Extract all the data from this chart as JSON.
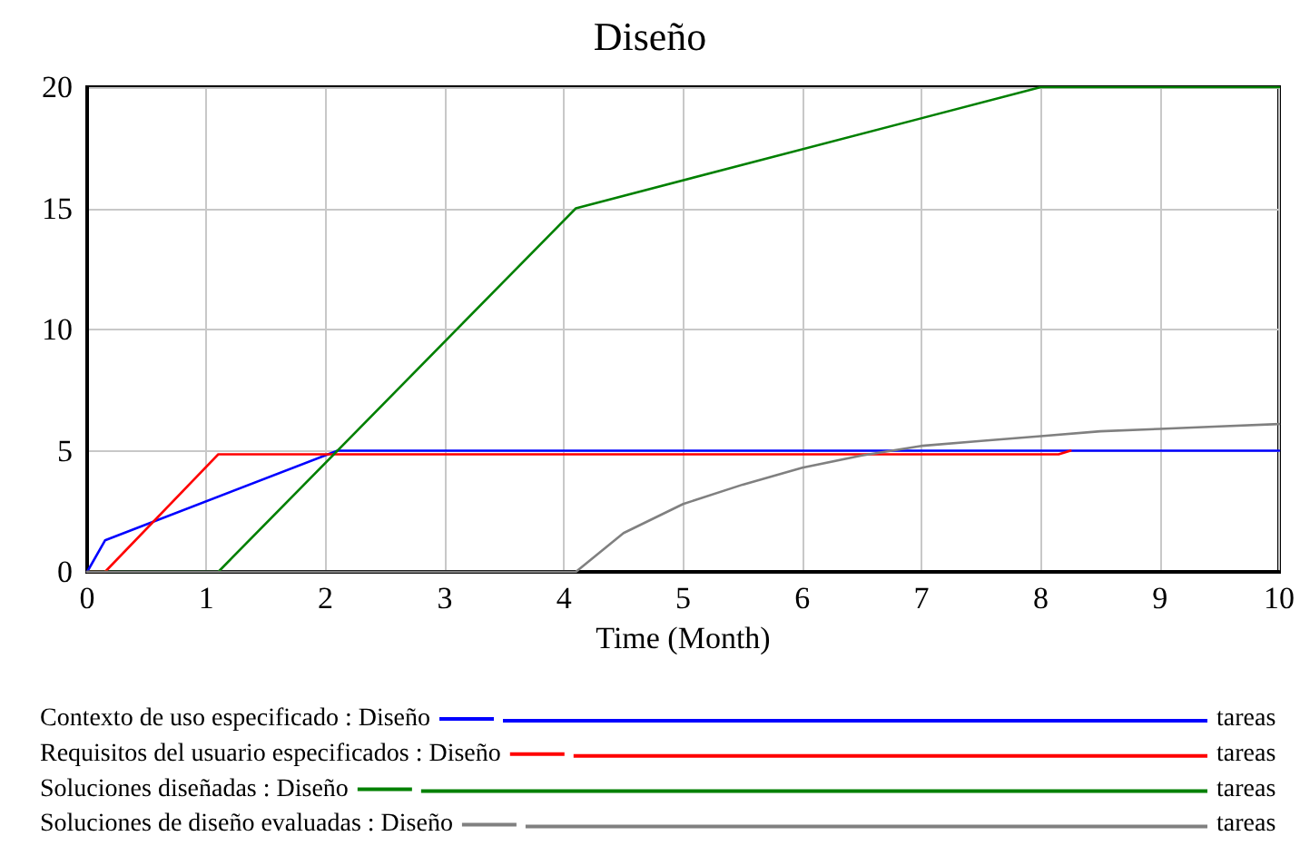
{
  "chart_data": {
    "type": "line",
    "title": "Diseño",
    "xlabel": "Time (Month)",
    "xlim": [
      0,
      10
    ],
    "xticks": [
      0,
      1,
      2,
      3,
      4,
      5,
      6,
      7,
      8,
      9,
      10
    ],
    "ylim": [
      0,
      20
    ],
    "yticks": [
      0,
      5,
      10,
      15,
      20
    ],
    "grid": true,
    "legend": "bottom",
    "marker": "none",
    "line_style": "solid",
    "series": [
      {
        "name": "Contexto de uso especificado : Diseño",
        "color": "#0000ff",
        "x": [
          0,
          0.15,
          2.1,
          10
        ],
        "values": [
          0,
          1.3,
          5,
          5
        ]
      },
      {
        "name": "Requisitos del usuario especificados : Diseño",
        "color": "#ff0000",
        "x": [
          0,
          0.15,
          1.1,
          8.15,
          8.25
        ],
        "values": [
          0,
          0,
          4.85,
          4.85,
          5
        ]
      },
      {
        "name": "Soluciones diseñadas : Diseño",
        "color": "#008000",
        "x": [
          0,
          1.1,
          4.1,
          8,
          10
        ],
        "values": [
          0,
          0,
          15,
          20,
          20
        ]
      },
      {
        "name": "Soluciones de diseño evaluadas : Diseño",
        "color": "#808080",
        "x": [
          0,
          4.1,
          4.5,
          5,
          5.5,
          6,
          6.5,
          7,
          7.5,
          8,
          8.5,
          9,
          9.5,
          10
        ],
        "values": [
          0,
          0,
          1.6,
          2.8,
          3.6,
          4.3,
          4.8,
          5.2,
          5.4,
          5.6,
          5.8,
          5.9,
          6.0,
          6.1
        ]
      }
    ],
    "annotations": [
      "tareas",
      "tareas",
      "tareas",
      "tareas"
    ]
  }
}
